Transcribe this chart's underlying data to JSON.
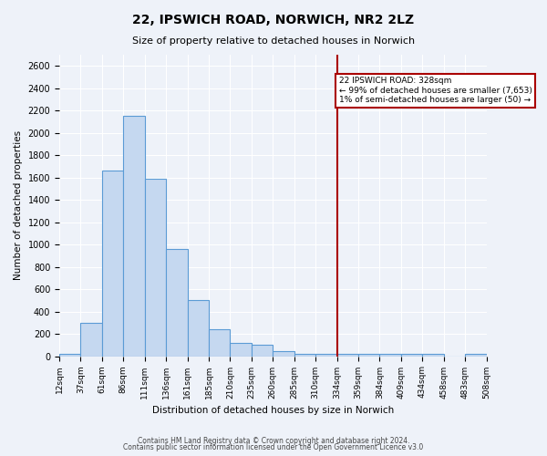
{
  "title1": "22, IPSWICH ROAD, NORWICH, NR2 2LZ",
  "title2": "Size of property relative to detached houses in Norwich",
  "xlabel": "Distribution of detached houses by size in Norwich",
  "ylabel": "Number of detached properties",
  "bin_labels": [
    "12sqm",
    "37sqm",
    "61sqm",
    "86sqm",
    "111sqm",
    "136sqm",
    "161sqm",
    "185sqm",
    "210sqm",
    "235sqm",
    "260sqm",
    "285sqm",
    "310sqm",
    "334sqm",
    "359sqm",
    "384sqm",
    "409sqm",
    "434sqm",
    "458sqm",
    "483sqm",
    "508sqm"
  ],
  "bar_heights": [
    25,
    300,
    1660,
    2150,
    1590,
    960,
    500,
    245,
    120,
    100,
    45,
    25,
    20,
    20,
    25,
    25,
    20,
    25,
    0,
    25
  ],
  "bar_color": "#c5d8f0",
  "bar_edgecolor": "#5b9bd5",
  "bg_color": "#eef2f9",
  "grid_color": "#ffffff",
  "vline_x_index": 13,
  "vline_color": "#aa0000",
  "vline_label": "328sqm",
  "property_sqm": 328,
  "pct_smaller": 99,
  "n_smaller": 7653,
  "pct_larger_semi": 1,
  "n_larger_semi": 50,
  "annotation_text_line1": "22 IPSWICH ROAD: 328sqm",
  "annotation_text_line2": "← 99% of detached houses are smaller (7,653)",
  "annotation_text_line3": "1% of semi-detached houses are larger (50) →",
  "ylim": [
    0,
    2700
  ],
  "yticks": [
    0,
    200,
    400,
    600,
    800,
    1000,
    1200,
    1400,
    1600,
    1800,
    2000,
    2200,
    2400,
    2600
  ],
  "footer1": "Contains HM Land Registry data © Crown copyright and database right 2024.",
  "footer2": "Contains public sector information licensed under the Open Government Licence v3.0"
}
